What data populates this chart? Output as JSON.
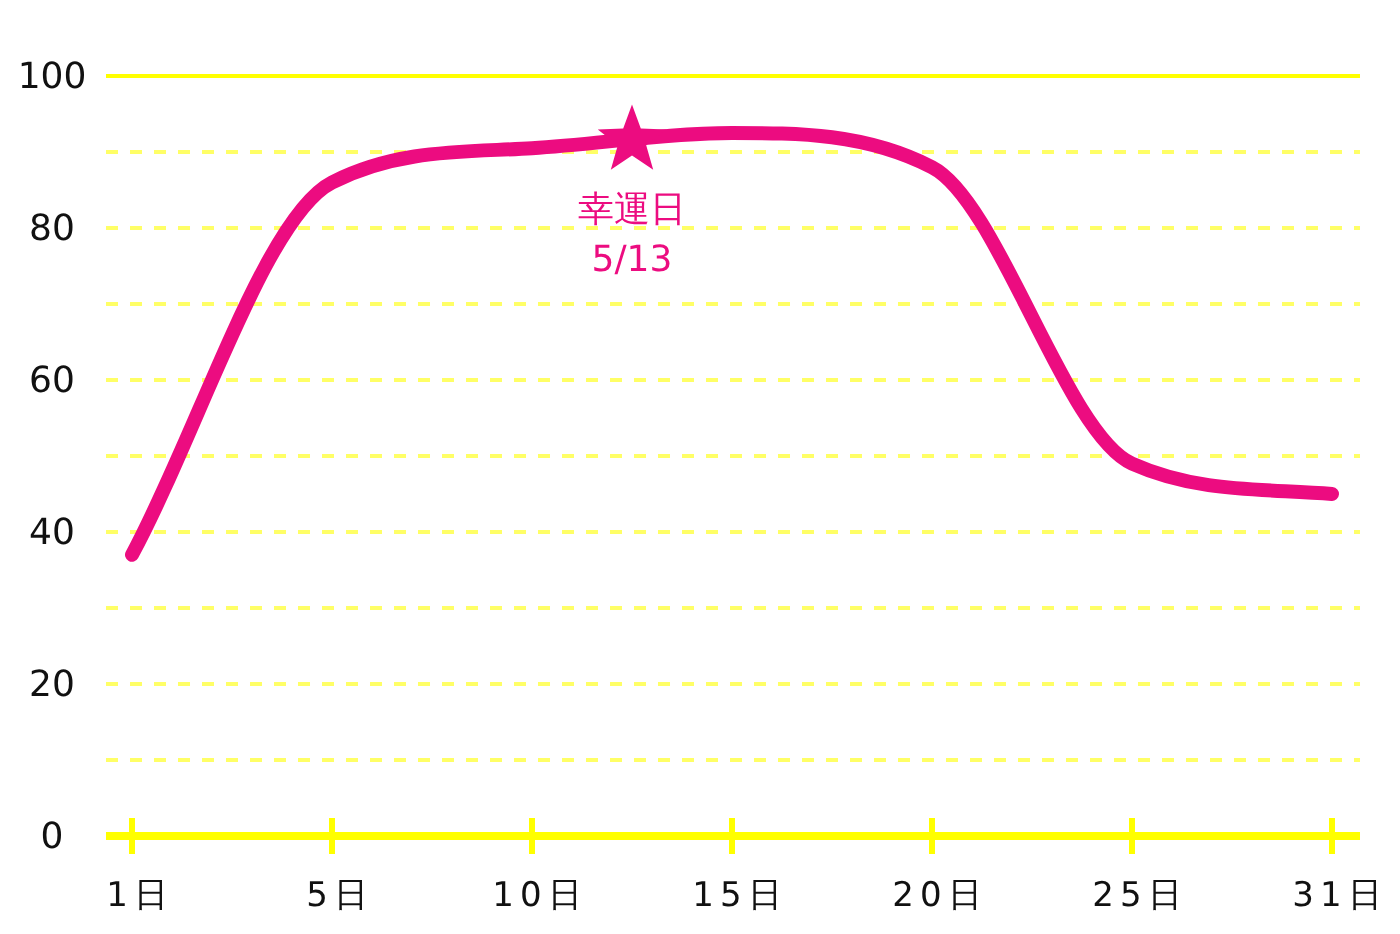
{
  "chart_data": {
    "type": "line",
    "categories": [
      "1日",
      "5日",
      "10日",
      "15日",
      "20日",
      "25日",
      "31日"
    ],
    "series": [
      {
        "color": "#ec0c80",
        "values": [
          37,
          86,
          90.5,
          92.5,
          88,
          49,
          45
        ]
      }
    ],
    "ylim": [
      0,
      100
    ],
    "yticks": [
      0,
      {
        "value": 10,
        "label": null
      },
      20,
      {
        "value": 30,
        "label": null
      },
      40,
      {
        "value": 50,
        "label": null
      },
      60,
      {
        "value": 70,
        "label": null
      },
      80,
      {
        "value": 90,
        "label": null
      },
      100
    ],
    "grid": "y",
    "marker": "none",
    "line_style": "solid",
    "annotations": [
      {
        "text": "幸運日 5/13",
        "y": 91.5
      }
    ]
  }
}
